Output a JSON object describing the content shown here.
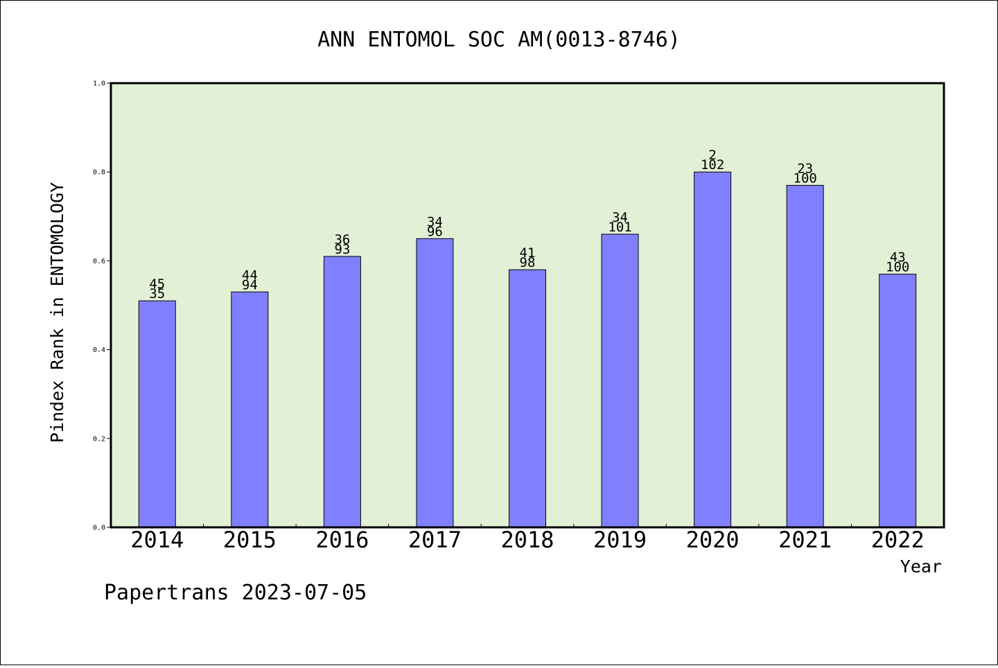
{
  "chart_data": {
    "type": "bar",
    "title": "ANN ENTOMOL SOC AM(0013-8746)",
    "xlabel": "Year",
    "ylabel": "Pindex Rank in ENTOMOLOGY",
    "ylim": [
      0,
      1.0
    ],
    "yticks": [
      "0.0",
      "0.2",
      "0.4",
      "0.6",
      "0.8",
      "1.0"
    ],
    "categories": [
      "2014",
      "2015",
      "2016",
      "2017",
      "2018",
      "2019",
      "2020",
      "2021",
      "2022"
    ],
    "values": [
      0.51,
      0.53,
      0.61,
      0.65,
      0.58,
      0.66,
      0.8,
      0.77,
      0.57
    ],
    "label_top": [
      "45",
      "44",
      "36",
      "34",
      "41",
      "34",
      "2",
      "23",
      "43"
    ],
    "label_bottom": [
      "35",
      "94",
      "93",
      "96",
      "98",
      "101",
      "102",
      "100",
      "100"
    ],
    "grid": false,
    "legend": "none",
    "colors": {
      "bar_fill": "#8080ff",
      "bar_stroke": "#000000",
      "plot_background": "#e2f0d6",
      "page_background": "#ffffff"
    }
  },
  "footer": {
    "text": "Papertrans 2023-07-05"
  }
}
